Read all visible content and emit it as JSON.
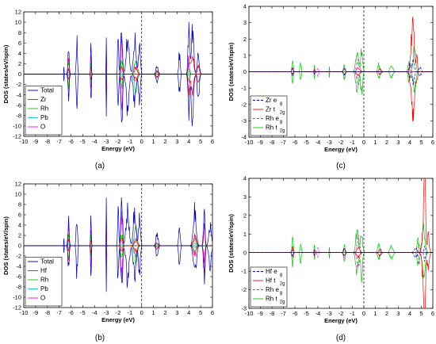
{
  "chart_data": [
    {
      "panel_label": "(a)",
      "type": "line",
      "xlabel": "Energy (eV)",
      "ylabel": "DOS (states/eV/spin)",
      "xlim": [
        -10,
        6
      ],
      "ylim": [
        -12,
        12
      ],
      "xticks": [
        "-10",
        "-9",
        "-8",
        "-7",
        "-6",
        "-5",
        "-4",
        "-3",
        "-2",
        "-1",
        "0",
        "1",
        "2",
        "3",
        "4",
        "5",
        "6"
      ],
      "yticks": [
        "-12",
        "-10",
        "-8",
        "-6",
        "-4",
        "-2",
        "0",
        "2",
        "4",
        "6",
        "8",
        "10",
        "12"
      ],
      "fermi_level": 0,
      "legend": [
        {
          "name": "Total",
          "color": "#0000cc",
          "dash": "solid"
        },
        {
          "name": "Zr",
          "color": "#ff0000",
          "dash": "solid"
        },
        {
          "name": "Rh",
          "color": "#00cc00",
          "dash": "solid"
        },
        {
          "name": "Pb",
          "color": "#00cccc",
          "dash": "solid"
        },
        {
          "name": "O",
          "color": "#ff00ff",
          "dash": "solid"
        }
      ],
      "series": [
        {
          "name": "Total",
          "color": "#0000cc",
          "peaks": [
            [
              -8.1,
              4.5
            ],
            [
              -6.6,
              2.0
            ],
            [
              -6.2,
              5.8
            ],
            [
              -5.5,
              7.5
            ],
            [
              -4.3,
              8.0
            ],
            [
              -3.0,
              8.5
            ],
            [
              -2.0,
              10.0
            ],
            [
              -1.7,
              11.2
            ],
            [
              -1.2,
              8.0
            ],
            [
              -0.6,
              7.5
            ],
            [
              -0.2,
              6.0
            ],
            [
              1.3,
              2.0
            ],
            [
              3.2,
              4.5
            ],
            [
              4.0,
              9.5
            ],
            [
              4.3,
              10.0
            ],
            [
              4.8,
              6.0
            ]
          ]
        },
        {
          "name": "Zr",
          "color": "#ff0000",
          "peaks": [
            [
              -8.1,
              0.2
            ],
            [
              -6.2,
              1.2
            ],
            [
              -4.3,
              1.6
            ],
            [
              -1.7,
              1.6
            ],
            [
              -0.5,
              1.2
            ],
            [
              1.3,
              0.8
            ],
            [
              4.0,
              4.0
            ],
            [
              4.3,
              5.0
            ],
            [
              4.8,
              2.0
            ]
          ]
        },
        {
          "name": "Rh",
          "color": "#00cc00",
          "peaks": [
            [
              -8.1,
              0.5
            ],
            [
              -6.2,
              3.0
            ],
            [
              -4.3,
              2.5
            ],
            [
              -1.7,
              3.0
            ],
            [
              -0.5,
              3.5
            ],
            [
              1.3,
              0.5
            ],
            [
              4.0,
              1.5
            ]
          ]
        },
        {
          "name": "Pb",
          "color": "#00cccc",
          "peaks": [
            [
              -8.1,
              3.0
            ],
            [
              -6.2,
              0.5
            ],
            [
              -1.7,
              0.5
            ],
            [
              4.0,
              0.5
            ]
          ]
        },
        {
          "name": "O",
          "color": "#ff00ff",
          "peaks": [
            [
              -8.1,
              1.0
            ],
            [
              -6.2,
              4.0
            ],
            [
              -4.3,
              5.5
            ],
            [
              -3.0,
              6.0
            ],
            [
              -1.7,
              7.0
            ],
            [
              -0.5,
              2.0
            ],
            [
              4.0,
              2.0
            ]
          ]
        }
      ]
    },
    {
      "panel_label": "(c)",
      "type": "line",
      "xlabel": "Energy (eV)",
      "ylabel": "DOS (states/eV/spin)",
      "xlim": [
        -10,
        6
      ],
      "ylim": [
        -4,
        4
      ],
      "xticks": [
        "-10",
        "-9",
        "-8",
        "-7",
        "-6",
        "-5",
        "-4",
        "-3",
        "-2",
        "-1",
        "0",
        "1",
        "2",
        "3",
        "4",
        "5",
        "6"
      ],
      "yticks": [
        "-4",
        "-3",
        "-2",
        "-1",
        "0",
        "1",
        "2",
        "3",
        "4"
      ],
      "fermi_level": 0,
      "legend": [
        {
          "name": "Zr e",
          "sub": "g",
          "color": "#0000cc",
          "dash": "dash"
        },
        {
          "name": "Zr t",
          "sub": "2g",
          "color": "#ff0000",
          "dash": "solid"
        },
        {
          "name": "Rh e",
          "sub": "g",
          "color": "#ff00ff",
          "dash": "dash"
        },
        {
          "name": "Rh t",
          "sub": "2g",
          "color": "#00cc00",
          "dash": "solid"
        }
      ],
      "series": [
        {
          "name": "Zr eg",
          "color": "#0000cc",
          "dash": "dash",
          "peaks": [
            [
              -8.1,
              0.05
            ],
            [
              -6.2,
              0.2
            ],
            [
              -4.3,
              0.2
            ],
            [
              -1.7,
              0.2
            ],
            [
              4.0,
              0.6
            ],
            [
              4.3,
              0.8
            ],
            [
              4.9,
              0.3
            ]
          ]
        },
        {
          "name": "Zr t2g",
          "color": "#ff0000",
          "dash": "solid",
          "peaks": [
            [
              -6.2,
              0.3
            ],
            [
              -4.3,
              0.2
            ],
            [
              -1.7,
              0.2
            ],
            [
              -0.5,
              0.3
            ],
            [
              1.4,
              0.2
            ],
            [
              4.1,
              1.5
            ],
            [
              4.3,
              3.1
            ],
            [
              4.6,
              1.0
            ]
          ]
        },
        {
          "name": "Rh eg",
          "color": "#ff00ff",
          "dash": "dash",
          "peaks": [
            [
              -6.2,
              0.3
            ],
            [
              -4.0,
              0.3
            ],
            [
              -1.7,
              0.3
            ],
            [
              -0.5,
              0.9
            ],
            [
              1.4,
              0.2
            ],
            [
              4.0,
              0.6
            ]
          ]
        },
        {
          "name": "Rh t2g",
          "color": "#00cc00",
          "dash": "solid",
          "peaks": [
            [
              -8.1,
              0.1
            ],
            [
              -6.2,
              1.0
            ],
            [
              -5.5,
              0.7
            ],
            [
              -4.3,
              0.5
            ],
            [
              -3.0,
              0.4
            ],
            [
              -1.7,
              0.5
            ],
            [
              -0.6,
              1.3
            ],
            [
              -0.2,
              1.6
            ],
            [
              1.3,
              0.5
            ],
            [
              2.4,
              0.4
            ],
            [
              3.9,
              0.8
            ],
            [
              4.4,
              1.5
            ]
          ]
        }
      ]
    },
    {
      "panel_label": "(b)",
      "type": "line",
      "xlabel": "Energy (eV)",
      "ylabel": "DOS (states/eV/spin)",
      "xlim": [
        -10,
        6
      ],
      "ylim": [
        -12,
        12
      ],
      "xticks": [
        "-10",
        "-9",
        "-8",
        "-7",
        "-6",
        "-5",
        "-4",
        "-3",
        "-2",
        "-1",
        "0",
        "1",
        "2",
        "3",
        "4",
        "5",
        "6"
      ],
      "yticks": [
        "-12",
        "-10",
        "-8",
        "-6",
        "-4",
        "-2",
        "0",
        "2",
        "4",
        "6",
        "8",
        "10",
        "12"
      ],
      "fermi_level": 0,
      "legend": [
        {
          "name": "Total",
          "color": "#0000cc",
          "dash": "solid"
        },
        {
          "name": "Hf",
          "color": "#ff0000",
          "dash": "solid"
        },
        {
          "name": "Rh",
          "color": "#00cc00",
          "dash": "solid"
        },
        {
          "name": "Pb",
          "color": "#00cccc",
          "dash": "solid"
        },
        {
          "name": "O",
          "color": "#ff00ff",
          "dash": "solid"
        }
      ],
      "series": [
        {
          "name": "Total",
          "color": "#0000cc",
          "peaks": [
            [
              -8.1,
              5.0
            ],
            [
              -6.6,
              2.0
            ],
            [
              -6.2,
              6.0
            ],
            [
              -5.5,
              7.5
            ],
            [
              -4.3,
              8.0
            ],
            [
              -3.0,
              8.5
            ],
            [
              -2.0,
              9.5
            ],
            [
              -1.7,
              11.3
            ],
            [
              -1.2,
              8.0
            ],
            [
              -0.6,
              7.5
            ],
            [
              -0.2,
              6.0
            ],
            [
              1.3,
              2.5
            ],
            [
              3.2,
              4.5
            ],
            [
              4.5,
              7.5
            ],
            [
              5.3,
              8.5
            ],
            [
              5.8,
              4.5
            ]
          ]
        },
        {
          "name": "Hf",
          "color": "#ff0000",
          "peaks": [
            [
              -6.2,
              1.2
            ],
            [
              -4.3,
              1.6
            ],
            [
              -1.7,
              1.6
            ],
            [
              -0.5,
              1.2
            ],
            [
              1.3,
              0.8
            ],
            [
              4.5,
              2.0
            ],
            [
              5.3,
              5.5
            ]
          ]
        },
        {
          "name": "Rh",
          "color": "#00cc00",
          "peaks": [
            [
              -8.1,
              0.5
            ],
            [
              -6.2,
              3.0
            ],
            [
              -4.3,
              2.5
            ],
            [
              -1.7,
              3.0
            ],
            [
              -0.5,
              3.5
            ],
            [
              1.3,
              0.5
            ],
            [
              4.5,
              1.5
            ]
          ]
        },
        {
          "name": "Pb",
          "color": "#00cccc",
          "peaks": [
            [
              -8.1,
              3.2
            ],
            [
              -6.2,
              0.5
            ],
            [
              -1.7,
              0.5
            ],
            [
              4.5,
              0.5
            ]
          ]
        },
        {
          "name": "O",
          "color": "#ff00ff",
          "peaks": [
            [
              -8.1,
              1.0
            ],
            [
              -6.2,
              4.0
            ],
            [
              -4.3,
              5.5
            ],
            [
              -3.0,
              6.0
            ],
            [
              -1.7,
              7.0
            ],
            [
              -0.5,
              2.0
            ],
            [
              4.5,
              2.0
            ],
            [
              5.3,
              4.0
            ]
          ]
        }
      ]
    },
    {
      "panel_label": "(d)",
      "type": "line",
      "xlabel": "Energy (eV)",
      "ylabel": "DOS (states/eV/spin)",
      "xlim": [
        -10,
        6
      ],
      "ylim": [
        -3,
        4
      ],
      "xticks": [
        "-10",
        "-9",
        "-8",
        "-7",
        "-6",
        "-5",
        "-4",
        "-3",
        "-2",
        "-1",
        "0",
        "1",
        "2",
        "3",
        "4",
        "5",
        "6"
      ],
      "yticks": [
        "-3",
        "-2",
        "-1",
        "0",
        "1",
        "2",
        "3",
        "4"
      ],
      "fermi_level": 0,
      "legend": [
        {
          "name": "Hf e",
          "sub": "g",
          "color": "#0000cc",
          "dash": "dash"
        },
        {
          "name": "Hf t",
          "sub": "2g",
          "color": "#ff0000",
          "dash": "solid"
        },
        {
          "name": "Rh e",
          "sub": "g",
          "color": "#ff00ff",
          "dash": "dash"
        },
        {
          "name": "Rh t",
          "sub": "2g",
          "color": "#00cc00",
          "dash": "solid"
        }
      ],
      "series": [
        {
          "name": "Hf eg",
          "color": "#0000cc",
          "dash": "dash",
          "peaks": [
            [
              -6.2,
              0.2
            ],
            [
              -4.3,
              0.2
            ],
            [
              -1.7,
              0.2
            ],
            [
              4.5,
              0.3
            ],
            [
              5.3,
              0.5
            ]
          ]
        },
        {
          "name": "Hf t2g",
          "color": "#ff0000",
          "dash": "solid",
          "peaks": [
            [
              -6.2,
              0.3
            ],
            [
              -4.3,
              0.2
            ],
            [
              -1.7,
              0.2
            ],
            [
              -0.5,
              0.3
            ],
            [
              1.4,
              0.2
            ],
            [
              5.2,
              2.0
            ],
            [
              5.3,
              4.0
            ],
            [
              5.6,
              1.0
            ]
          ]
        },
        {
          "name": "Rh eg",
          "color": "#ff00ff",
          "dash": "dash",
          "peaks": [
            [
              -6.2,
              0.3
            ],
            [
              -4.0,
              0.3
            ],
            [
              -1.7,
              0.3
            ],
            [
              -0.5,
              0.9
            ],
            [
              1.4,
              0.2
            ],
            [
              4.8,
              0.6
            ]
          ]
        },
        {
          "name": "Rh t2g",
          "color": "#00cc00",
          "dash": "solid",
          "peaks": [
            [
              -8.1,
              0.1
            ],
            [
              -6.2,
              1.0
            ],
            [
              -5.5,
              0.7
            ],
            [
              -4.3,
              0.5
            ],
            [
              -3.0,
              0.4
            ],
            [
              -1.7,
              0.5
            ],
            [
              -0.6,
              1.3
            ],
            [
              -0.2,
              1.5
            ],
            [
              1.3,
              0.5
            ],
            [
              2.4,
              0.4
            ],
            [
              4.7,
              0.8
            ],
            [
              5.2,
              1.5
            ]
          ]
        }
      ]
    }
  ]
}
